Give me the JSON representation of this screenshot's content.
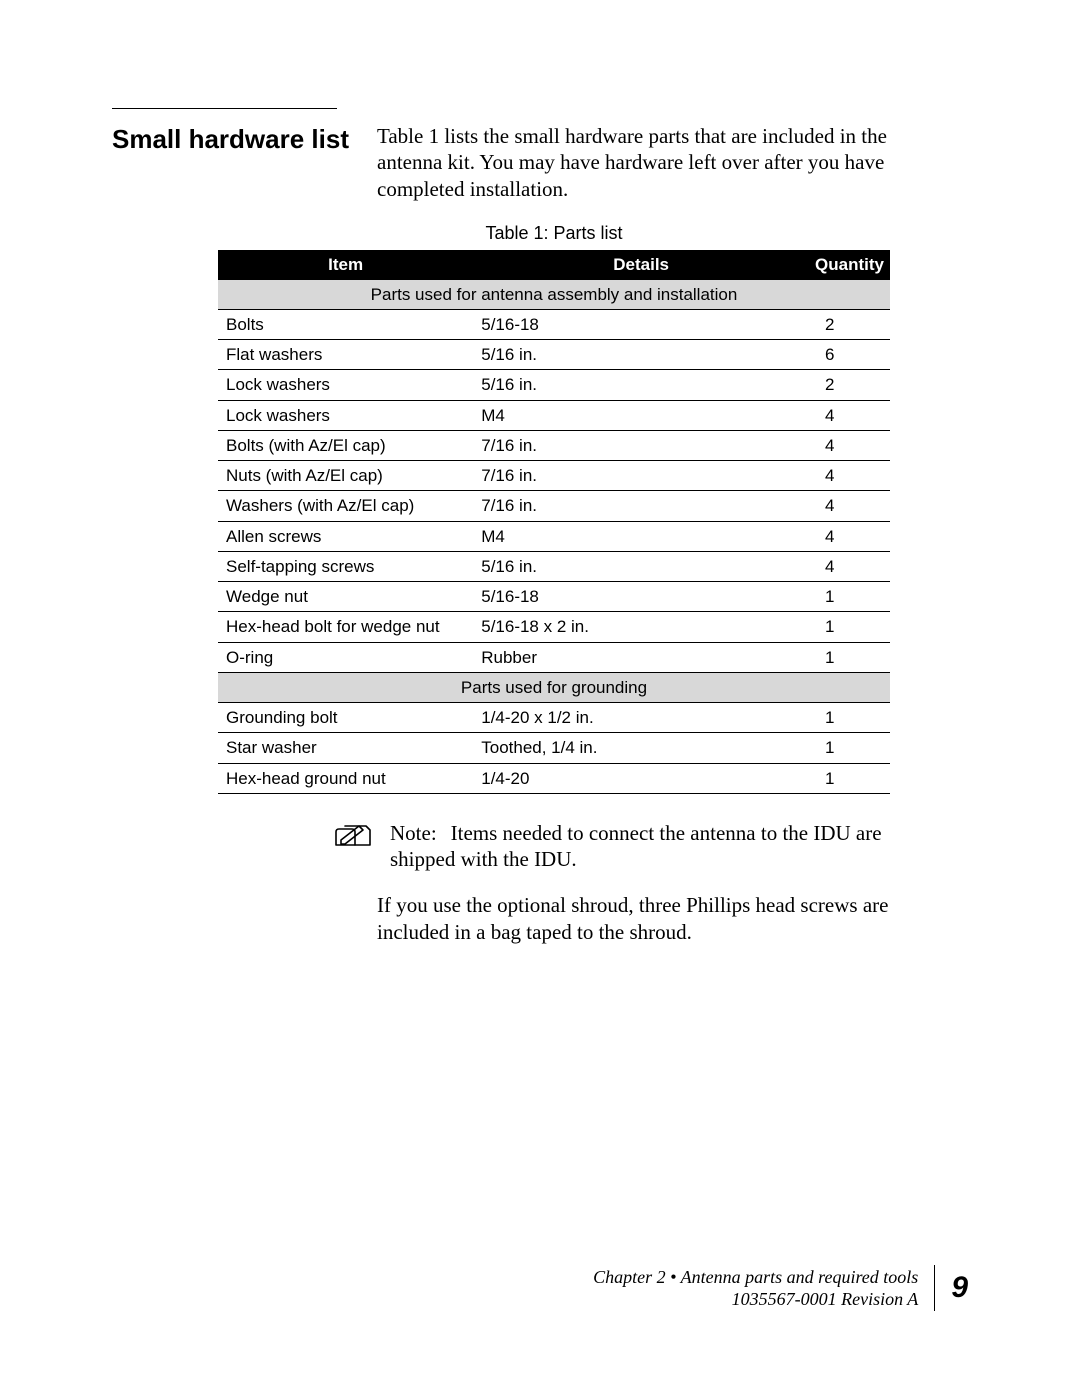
{
  "section": {
    "title": "Small hardware list",
    "intro": "Table 1 lists the small hardware parts that are included in the antenna kit. You may have hardware left over after you have completed installation."
  },
  "table": {
    "caption": "Table 1:  Parts list",
    "columns": [
      "Item",
      "Details",
      "Quantity"
    ],
    "column_widths_pct": [
      38,
      50,
      12
    ],
    "header_bg": "#000000",
    "header_fg": "#ffffff",
    "section_bg": "#d8d8d8",
    "border_color": "#000000",
    "font_family": "Arial",
    "font_size_pt": 13,
    "rows": [
      {
        "type": "section",
        "label": "Parts used for antenna assembly and installation"
      },
      {
        "type": "row",
        "item": "Bolts",
        "details": "5/16-18",
        "qty": "2"
      },
      {
        "type": "row",
        "item": "Flat washers",
        "details": "5/16 in.",
        "qty": "6"
      },
      {
        "type": "row",
        "item": "Lock washers",
        "details": "5/16 in.",
        "qty": "2"
      },
      {
        "type": "row",
        "item": "Lock washers",
        "details": "M4",
        "qty": "4"
      },
      {
        "type": "row",
        "item": "Bolts (with Az/El cap)",
        "details": "7/16 in.",
        "qty": "4"
      },
      {
        "type": "row",
        "item": "Nuts (with Az/El cap)",
        "details": "7/16 in.",
        "qty": "4"
      },
      {
        "type": "row",
        "item": "Washers (with Az/El cap)",
        "details": "7/16 in.",
        "qty": "4"
      },
      {
        "type": "row",
        "item": "Allen screws",
        "details": "M4",
        "qty": "4"
      },
      {
        "type": "row",
        "item": "Self-tapping screws",
        "details": "5/16 in.",
        "qty": "4"
      },
      {
        "type": "row",
        "item": "Wedge nut",
        "details": "5/16-18",
        "qty": "1"
      },
      {
        "type": "row",
        "item": "Hex-head bolt for wedge nut",
        "details": "5/16-18 x 2 in.",
        "qty": "1"
      },
      {
        "type": "row",
        "item": "O-ring",
        "details": "Rubber",
        "qty": "1"
      },
      {
        "type": "section",
        "label": "Parts used for grounding"
      },
      {
        "type": "row",
        "item": "Grounding bolt",
        "details": "1/4-20 x 1/2 in.",
        "qty": "1"
      },
      {
        "type": "row",
        "item": "Star washer",
        "details": "Toothed, 1/4 in.",
        "qty": "1"
      },
      {
        "type": "row",
        "item": "Hex-head ground nut",
        "details": "1/4-20",
        "qty": "1"
      }
    ]
  },
  "note": {
    "label": "Note:",
    "text": "Items needed to connect the antenna to the IDU are shipped with the IDU.",
    "icon_name": "pencil-note-icon"
  },
  "after_note": "If you use the optional shroud, three Phillips head screws are included in a bag taped to the shroud.",
  "footer": {
    "chapter_line": "Chapter 2 • Antenna parts and required tools",
    "doc_line": "1035567-0001  Revision A",
    "page_number": "9"
  },
  "colors": {
    "background": "#ffffff",
    "text": "#000000"
  },
  "body_font_family": "Times New Roman",
  "body_font_size_pt": 16
}
